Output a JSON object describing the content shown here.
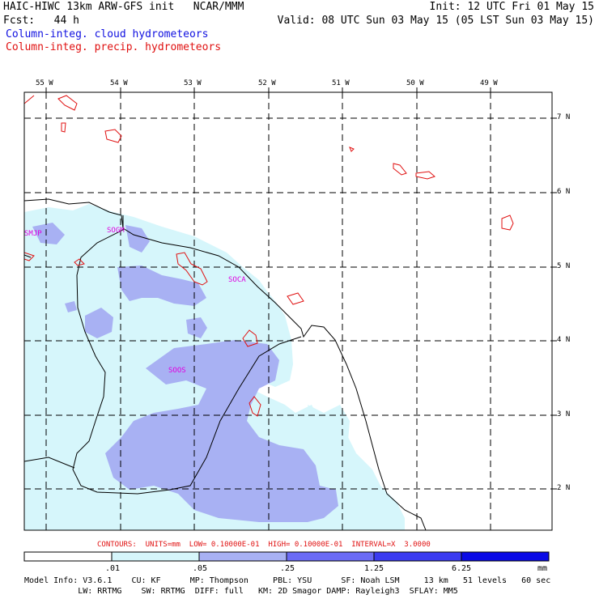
{
  "header": {
    "line1_left": "HAIC-HIWC 13km ARW-GFS init   NCAR/MMM",
    "line1_right": "Init: 12 UTC Fri 01 May 15",
    "line2_left": "Fcst:   44 h",
    "line2_right": "Valid: 08 UTC Sun 03 May 15 (05 LST Sun 03 May 15)",
    "legend_cloud": "Column-integ. cloud hydrometeors",
    "legend_precip": "Column-integ. precip. hydrometeors"
  },
  "longitudes": [
    "55 W",
    "54 W",
    "53 W",
    "52 W",
    "51 W",
    "50 W",
    "49 W"
  ],
  "latitudes": [
    "7 N",
    "6 N",
    "5 N",
    "4 N",
    "3 N",
    "2 N"
  ],
  "stations": [
    "SMJP",
    "SOGM",
    "SOCA",
    "SOOS"
  ],
  "contour_info": "CONTOURS:  UNITS=mm  LOW= 0.10000E-01  HIGH= 0.10000E-01  INTERVAL=X  3.0000",
  "colorbar": {
    "labels": [
      ".01",
      ".05",
      ".25",
      "1.25",
      "6.25",
      "mm"
    ],
    "colors": [
      "#ffffff",
      "#d6f6fb",
      "#a8b1f3",
      "#6b6bf5",
      "#3b3bf0",
      "#0a0ae6"
    ]
  },
  "model_info": {
    "line1": "Model Info: V3.6.1    CU: KF      MP: Thompson     PBL: YSU      SF: Noah LSM     13 km   51 levels   60 sec",
    "line2": "           LW: RRTMG    SW: RRTMG  DIFF: full   KM: 2D Smagor DAMP: Rayleigh3  SFLAY: MM5"
  },
  "colors": {
    "cloud_light": "#d6f6fb",
    "cloud_mid": "#a8b1f3",
    "precip_contour": "#e01010",
    "station": "#e000e0"
  }
}
